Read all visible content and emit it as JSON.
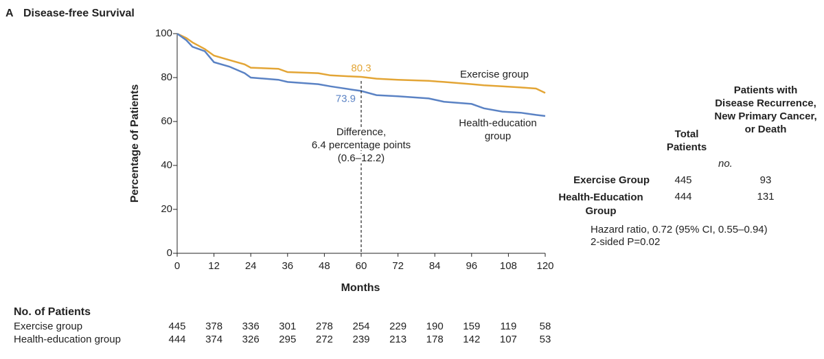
{
  "chart_data": {
    "type": "line",
    "panel_label": "A",
    "title": "Disease-free Survival",
    "y_label": "Percentage of Patients",
    "x_label": "Months",
    "xlim": [
      0,
      120
    ],
    "xticks": [
      0,
      12,
      24,
      36,
      48,
      60,
      72,
      84,
      96,
      108,
      120
    ],
    "ylim": [
      0,
      100
    ],
    "yticks": [
      0,
      20,
      40,
      60,
      80,
      100
    ],
    "x": [
      0,
      3,
      5,
      9,
      12,
      17,
      22,
      24,
      33,
      36,
      46,
      50,
      57,
      60,
      65,
      72,
      82,
      87,
      96,
      100,
      106,
      112,
      117,
      120
    ],
    "series": [
      {
        "name": "Exercise group",
        "color": "#e3a535",
        "annotation": 80.3,
        "values": [
          100,
          98,
          96,
          93,
          90,
          88,
          86,
          84.5,
          84,
          82.5,
          82,
          81,
          80.5,
          80.3,
          79.5,
          79,
          78.5,
          78,
          77,
          76.5,
          76,
          75.5,
          75,
          73
        ]
      },
      {
        "name": "Health-education group",
        "color": "#5a82c4",
        "annotation": 73.9,
        "values": [
          100,
          97,
          94,
          92,
          87,
          85,
          82,
          80,
          79,
          78,
          77,
          76,
          74.5,
          73.9,
          72,
          71.5,
          70.5,
          69,
          68,
          66,
          64.5,
          64,
          63,
          62.5
        ]
      }
    ],
    "difference_label": [
      "Difference,",
      "6.4 percentage points",
      "(0.6–12.2)"
    ],
    "at_risk": {
      "title": "No. of Patients",
      "rows": [
        {
          "name": "Exercise group",
          "values": [
            445,
            378,
            336,
            301,
            278,
            254,
            229,
            190,
            159,
            119,
            58
          ]
        },
        {
          "name": "Health-education group",
          "values": [
            444,
            374,
            326,
            295,
            272,
            239,
            213,
            178,
            142,
            107,
            53
          ]
        }
      ]
    },
    "summary_table": {
      "columns": [
        "Total Patients",
        "Patients with Disease Recurrence, New Primary Cancer, or Death"
      ],
      "unit": "no.",
      "rows": [
        [
          "Exercise Group",
          445,
          93
        ],
        [
          "Health-Education Group",
          444,
          131
        ]
      ],
      "notes": [
        "Hazard ratio, 0.72 (95% CI, 0.55–0.94)",
        "2-sided P=0.02"
      ]
    }
  }
}
